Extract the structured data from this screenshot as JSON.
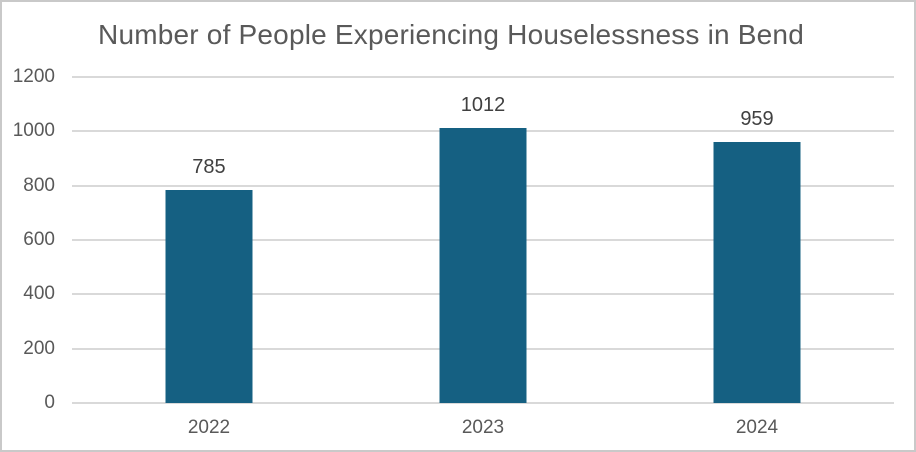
{
  "chart_data": {
    "type": "bar",
    "title": "Number of People Experiencing Houselessness in Bend",
    "categories": [
      "2022",
      "2023",
      "2024"
    ],
    "values": [
      785,
      1012,
      959
    ],
    "data_labels": [
      "785",
      "1012",
      "959"
    ],
    "yticks": [
      "1200",
      "1000",
      "800",
      "600",
      "400",
      "200",
      "0"
    ],
    "ytick_values": [
      1200,
      1000,
      800,
      600,
      400,
      200,
      0
    ],
    "ylim": [
      0,
      1200
    ],
    "xlabel": "",
    "ylabel": "",
    "grid": "horizontal",
    "legend": "none",
    "colors": {
      "bar": "#156082",
      "gridline": "#d9d9d9",
      "title_text": "#595959",
      "tick_text": "#595959",
      "data_label_text": "#404040",
      "chart_border": "#c9c9c9",
      "background": "#ffffff"
    }
  }
}
